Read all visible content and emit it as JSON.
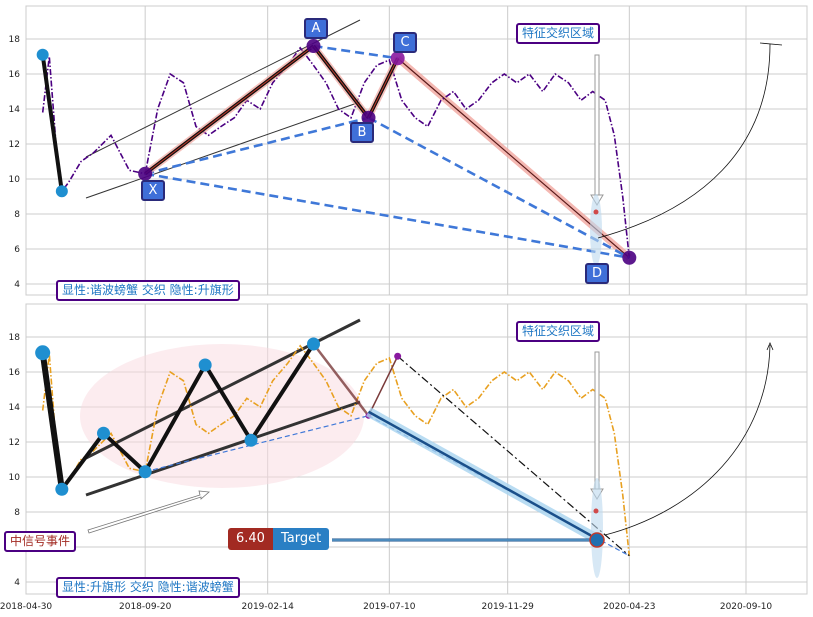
{
  "chart_data": [
    {
      "type": "line",
      "panel": "top",
      "ylim": [
        3.5,
        19.5
      ],
      "y_ticks": [
        4,
        6,
        8,
        10,
        12,
        14,
        16,
        18
      ],
      "grid": true,
      "series": [
        {
          "color": "#4b0082",
          "style": "dash-dot",
          "x": [
            "2018-05-20",
            "2018-05-28",
            "2018-06-05",
            "2018-06-12",
            "2018-06-20",
            "2018-07-05",
            "2018-07-20",
            "2018-08-10",
            "2018-09-01",
            "2018-09-20",
            "2018-10-05",
            "2018-10-20",
            "2018-11-05",
            "2018-11-20",
            "2018-12-05",
            "2018-12-20",
            "2019-01-05",
            "2019-01-20",
            "2019-02-05",
            "2019-02-20",
            "2019-03-10",
            "2019-03-25",
            "2019-04-10",
            "2019-04-25",
            "2019-05-10",
            "2019-05-25",
            "2019-06-10",
            "2019-06-25",
            "2019-07-10",
            "2019-07-25",
            "2019-08-10",
            "2019-08-25",
            "2019-09-10",
            "2019-09-25",
            "2019-10-10",
            "2019-10-25",
            "2019-11-10",
            "2019-11-25",
            "2019-12-10",
            "2019-12-25",
            "2020-01-10",
            "2020-01-25",
            "2020-02-10",
            "2020-02-25",
            "2020-03-10",
            "2020-03-25",
            "2020-04-05",
            "2020-04-15",
            "2020-04-23"
          ],
          "values": [
            13.8,
            17.0,
            12.0,
            9.3,
            9.8,
            11.0,
            11.5,
            12.5,
            10.5,
            10.3,
            14.0,
            16.0,
            15.5,
            13.0,
            12.5,
            13.0,
            13.5,
            14.5,
            14.0,
            15.5,
            16.5,
            17.5,
            16.5,
            15.5,
            14.0,
            13.5,
            15.5,
            16.5,
            16.8,
            14.5,
            13.5,
            13.0,
            14.5,
            15.0,
            14.0,
            14.5,
            15.5,
            16.0,
            15.5,
            16.0,
            15.0,
            16.0,
            15.5,
            14.5,
            15.0,
            14.5,
            12.5,
            9.0,
            5.5
          ]
        }
      ],
      "harmonic_points": [
        {
          "label": "X",
          "x": "2018-09-20",
          "y": 10.3
        },
        {
          "label": "A",
          "x": "2019-04-10",
          "y": 17.6
        },
        {
          "label": "B",
          "x": "2019-06-15",
          "y": 13.5
        },
        {
          "label": "C",
          "x": "2019-07-20",
          "y": 16.9
        },
        {
          "label": "D",
          "x": "2020-04-23",
          "y": 5.5
        }
      ],
      "flag_points": [
        {
          "x": "2018-05-20",
          "y": 17.1
        },
        {
          "x": "2018-06-12",
          "y": 9.3
        }
      ]
    },
    {
      "type": "line",
      "panel": "bottom",
      "ylim": [
        3.5,
        19.5
      ],
      "y_ticks": [
        4,
        6,
        8,
        10,
        12,
        14,
        16,
        18
      ],
      "x_ticks": [
        "2018-04-30",
        "2018-09-20",
        "2019-02-14",
        "2019-07-10",
        "2019-11-29",
        "2020-04-23",
        "2020-09-10"
      ],
      "grid": true,
      "series": [
        {
          "color": "#e8a020",
          "style": "dash-dot",
          "x": [
            "2018-05-20",
            "2018-05-28",
            "2018-06-05",
            "2018-06-12",
            "2018-06-20",
            "2018-07-05",
            "2018-07-20",
            "2018-08-10",
            "2018-09-01",
            "2018-09-20",
            "2018-10-05",
            "2018-10-20",
            "2018-11-05",
            "2018-11-20",
            "2018-12-05",
            "2018-12-20",
            "2019-01-05",
            "2019-01-20",
            "2019-02-05",
            "2019-02-20",
            "2019-03-10",
            "2019-03-25",
            "2019-04-10",
            "2019-04-25",
            "2019-05-10",
            "2019-05-25",
            "2019-06-10",
            "2019-06-25",
            "2019-07-10",
            "2019-07-25",
            "2019-08-10",
            "2019-08-25",
            "2019-09-10",
            "2019-09-25",
            "2019-10-10",
            "2019-10-25",
            "2019-11-10",
            "2019-11-25",
            "2019-12-10",
            "2019-12-25",
            "2020-01-10",
            "2020-01-25",
            "2020-02-10",
            "2020-02-25",
            "2020-03-10",
            "2020-03-25",
            "2020-04-05",
            "2020-04-15",
            "2020-04-23"
          ],
          "values": [
            13.8,
            17.0,
            12.0,
            9.3,
            9.8,
            11.0,
            11.5,
            12.5,
            10.5,
            10.3,
            14.0,
            16.0,
            15.5,
            13.0,
            12.5,
            13.0,
            13.5,
            14.5,
            14.0,
            15.5,
            16.5,
            17.5,
            16.5,
            15.5,
            14.0,
            13.5,
            15.5,
            16.5,
            16.8,
            14.5,
            13.5,
            13.0,
            14.5,
            15.0,
            14.0,
            14.5,
            15.5,
            16.0,
            15.5,
            16.0,
            15.0,
            16.0,
            15.5,
            14.5,
            15.0,
            14.5,
            12.5,
            9.0,
            5.5
          ]
        }
      ],
      "flag_points": [
        {
          "x": "2018-05-20",
          "y": 17.1
        },
        {
          "x": "2018-06-12",
          "y": 9.3
        },
        {
          "x": "2018-08-01",
          "y": 12.5
        },
        {
          "x": "2018-09-20",
          "y": 10.3
        },
        {
          "x": "2018-12-01",
          "y": 16.4
        },
        {
          "x": "2019-01-25",
          "y": 12.1
        },
        {
          "x": "2019-04-10",
          "y": 17.6
        }
      ],
      "target_value": "6.40",
      "target_label": "Target"
    }
  ],
  "labels": {
    "top_zone": "特征交织区域",
    "top_caption": "显性:谐波螃蟹 交织 隐性:升旗形",
    "bottom_zone": "特征交织区域",
    "bottom_caption": "显性:升旗形 交织 隐性:谐波螃蟹",
    "mid_signal": "中信号事件"
  }
}
